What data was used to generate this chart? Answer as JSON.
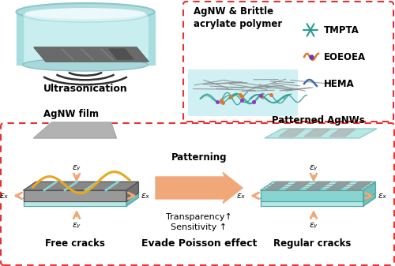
{
  "fig_width": 5.0,
  "fig_height": 3.37,
  "bg_color": "#ffffff",
  "top_left_label": "Ultrasonication",
  "top_right_title": "AgNW & Brittle\nacrylate polymer",
  "legend_items": [
    "TMPTA",
    "EOEOEA",
    "HEMA"
  ],
  "legend_colors": [
    "#2a9d8f",
    "#e07828",
    "#3a6faa"
  ],
  "bottom_left_label": "AgNW film",
  "bottom_left_sub": "Free cracks",
  "bottom_right_label": "Patterned AgNWs",
  "bottom_right_sub": "Regular cracks",
  "center_label1": "Patterning",
  "center_label2": "Transparency↑",
  "center_label3": "Sensitivity ↑",
  "bottom_center_label": "Evade Poisson effect",
  "arrow_color": "#f0a878",
  "teal_color": "#88d4d0",
  "teal_light": "#b8e8e4",
  "gray_color": "#909090",
  "dark_gray": "#585858",
  "red_dash_color": "#e83030",
  "eps_x": "εₓ",
  "eps_y": "εᵧ"
}
